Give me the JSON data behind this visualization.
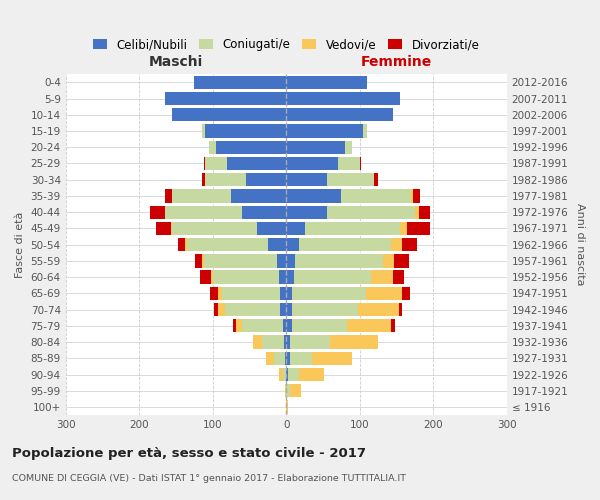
{
  "age_groups": [
    "0-4",
    "5-9",
    "10-14",
    "15-19",
    "20-24",
    "25-29",
    "30-34",
    "35-39",
    "40-44",
    "45-49",
    "50-54",
    "55-59",
    "60-64",
    "65-69",
    "70-74",
    "75-79",
    "80-84",
    "85-89",
    "90-94",
    "95-99",
    "100+"
  ],
  "birth_years": [
    "2012-2016",
    "2007-2011",
    "2002-2006",
    "1997-2001",
    "1992-1996",
    "1987-1991",
    "1982-1986",
    "1977-1981",
    "1972-1976",
    "1967-1971",
    "1962-1966",
    "1957-1961",
    "1952-1956",
    "1947-1951",
    "1942-1946",
    "1937-1941",
    "1932-1936",
    "1927-1931",
    "1922-1926",
    "1917-1921",
    "≤ 1916"
  ],
  "male_celibe": [
    125,
    165,
    155,
    110,
    95,
    80,
    55,
    75,
    60,
    40,
    25,
    12,
    10,
    8,
    8,
    5,
    3,
    2,
    0,
    0,
    0
  ],
  "male_coniugato": [
    0,
    0,
    0,
    5,
    10,
    30,
    55,
    80,
    105,
    115,
    110,
    100,
    90,
    80,
    75,
    55,
    30,
    15,
    5,
    0,
    0
  ],
  "male_vedovo": [
    0,
    0,
    0,
    0,
    0,
    0,
    0,
    0,
    0,
    2,
    2,
    2,
    2,
    5,
    10,
    8,
    12,
    10,
    5,
    2,
    0
  ],
  "male_divorziato": [
    0,
    0,
    0,
    0,
    0,
    2,
    5,
    10,
    20,
    20,
    10,
    10,
    15,
    10,
    5,
    5,
    0,
    0,
    0,
    0,
    0
  ],
  "female_celibe": [
    110,
    155,
    145,
    105,
    80,
    70,
    55,
    75,
    55,
    25,
    18,
    12,
    10,
    8,
    8,
    8,
    5,
    5,
    2,
    0,
    0
  ],
  "female_coniugata": [
    0,
    0,
    0,
    5,
    10,
    30,
    65,
    95,
    120,
    130,
    125,
    120,
    105,
    100,
    90,
    75,
    55,
    30,
    15,
    5,
    0
  ],
  "female_vedova": [
    0,
    0,
    0,
    0,
    0,
    0,
    0,
    2,
    5,
    10,
    15,
    15,
    30,
    50,
    55,
    60,
    65,
    55,
    35,
    15,
    2
  ],
  "female_divorziata": [
    0,
    0,
    0,
    0,
    0,
    2,
    5,
    10,
    15,
    30,
    20,
    20,
    15,
    10,
    5,
    5,
    0,
    0,
    0,
    0,
    0
  ],
  "colors": {
    "celibe": "#4472C4",
    "coniugato": "#C5D9A0",
    "vedovo": "#FAC85A",
    "divorziato": "#CC0000"
  },
  "title": "Popolazione per età, sesso e stato civile - 2017",
  "subtitle": "COMUNE DI CEGGIA (VE) - Dati ISTAT 1° gennaio 2017 - Elaborazione TUTTITALIA.IT",
  "label_maschi": "Maschi",
  "label_femmine": "Femmine",
  "ylabel_left": "Fasce di età",
  "ylabel_right": "Anni di nascita",
  "xlim": 300,
  "bg_color": "#efefef",
  "plot_color": "#ffffff",
  "legend_labels": [
    "Celibi/Nubili",
    "Coniugati/e",
    "Vedovi/e",
    "Divorziati/e"
  ]
}
